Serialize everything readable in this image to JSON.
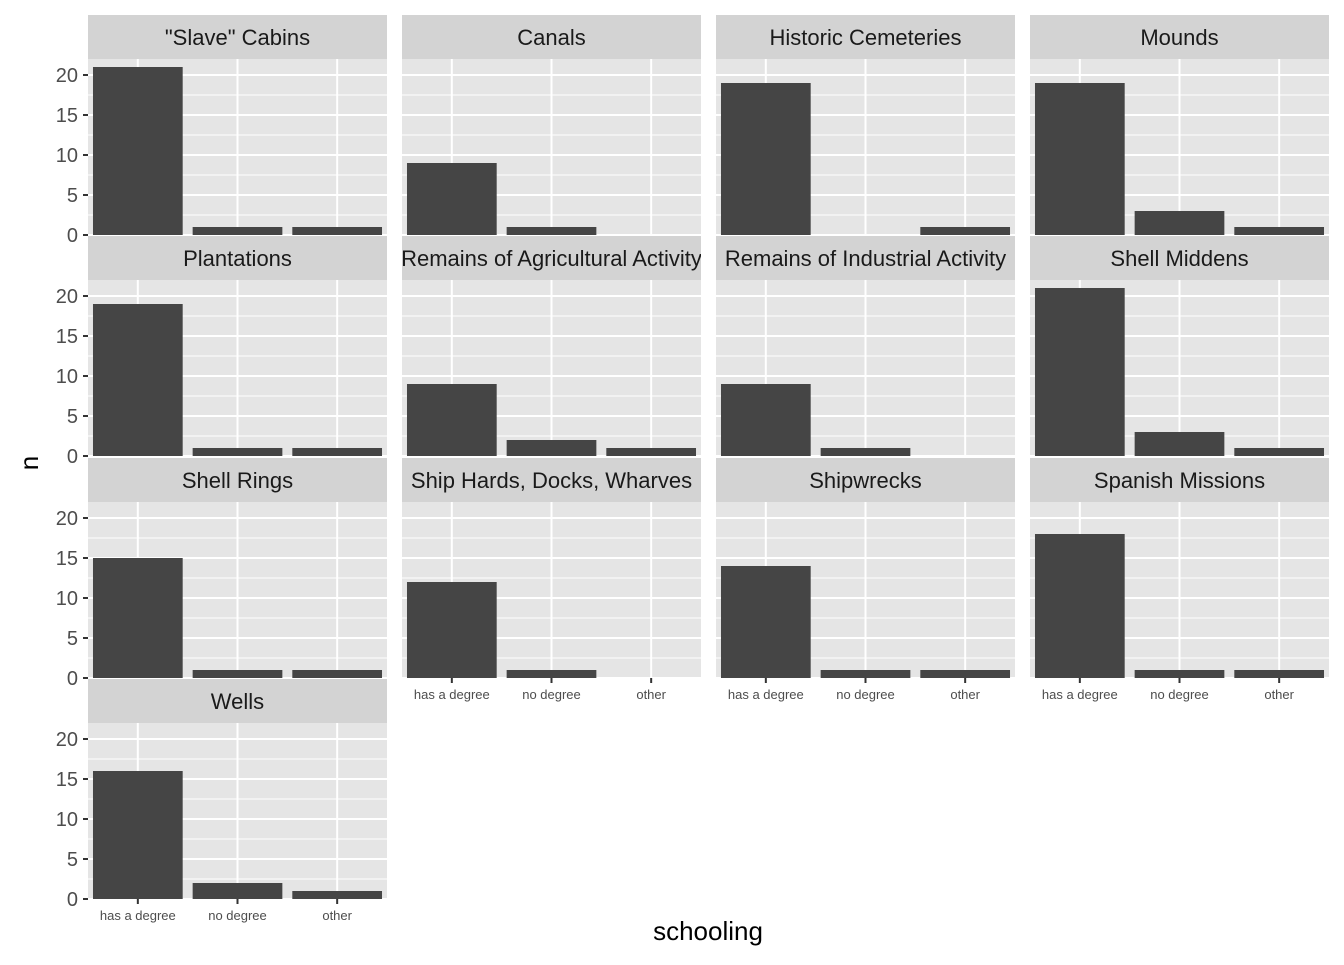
{
  "chart_data": {
    "type": "bar",
    "xlabel": "schooling",
    "ylabel": "n",
    "categories": [
      "has a degree",
      "no degree",
      "other"
    ],
    "ylim": [
      0,
      22
    ],
    "yticks": [
      0,
      5,
      10,
      15,
      20
    ],
    "grid": true,
    "panels": [
      {
        "name": "\"Slave\" Cabins",
        "values": [
          21,
          1,
          1
        ]
      },
      {
        "name": "Canals",
        "values": [
          9,
          1,
          0
        ]
      },
      {
        "name": "Historic Cemeteries",
        "values": [
          19,
          0,
          1
        ]
      },
      {
        "name": "Mounds",
        "values": [
          19,
          3,
          1
        ]
      },
      {
        "name": "Plantations",
        "values": [
          19,
          1,
          1
        ]
      },
      {
        "name": "Remains of Agricultural Activity",
        "values": [
          9,
          2,
          1
        ]
      },
      {
        "name": "Remains of Industrial Activity",
        "values": [
          9,
          1,
          0
        ]
      },
      {
        "name": "Shell Middens",
        "values": [
          21,
          3,
          1
        ]
      },
      {
        "name": "Shell Rings",
        "values": [
          15,
          1,
          1
        ]
      },
      {
        "name": "Ship Hards, Docks, Wharves",
        "values": [
          12,
          1,
          0
        ]
      },
      {
        "name": "Shipwrecks",
        "values": [
          14,
          1,
          1
        ]
      },
      {
        "name": "Spanish Missions",
        "values": [
          18,
          1,
          1
        ]
      },
      {
        "name": "Wells",
        "values": [
          16,
          2,
          1
        ]
      }
    ],
    "colors": {
      "bar": "#454545",
      "panel_bg": "#e5e5e5",
      "strip_bg": "#d3d3d3",
      "grid": "#ffffff",
      "tick": "#333333"
    }
  }
}
